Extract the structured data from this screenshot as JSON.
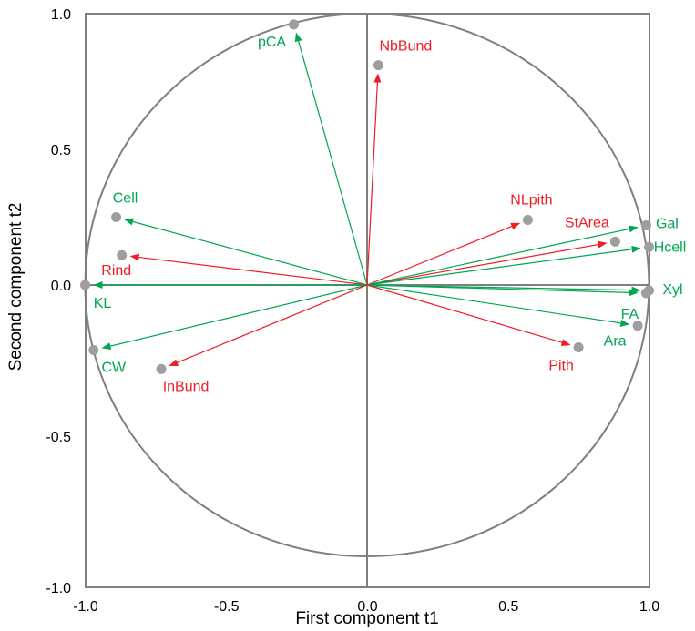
{
  "chart_data": {
    "type": "scatter",
    "subtype": "correlation-circle",
    "title": "",
    "xlabel": "First component t1",
    "ylabel": "Second component t2",
    "xlim": [
      -1.0,
      1.0
    ],
    "ylim": [
      -1.0,
      1.0
    ],
    "x_ticks": [
      "-1.0",
      "-0.5",
      "0.0",
      "0.5",
      "1.0"
    ],
    "y_ticks": [
      "1.0",
      "0.5",
      "0.0",
      "-0.5",
      "-1.0"
    ],
    "x_tick_values": [
      -1.0,
      -0.5,
      0.0,
      0.5,
      1.0
    ],
    "y_tick_values": [
      1.0,
      0.5,
      0.0,
      -0.5,
      -1.0
    ],
    "unit_circle": true,
    "grid": false,
    "legend": "none",
    "colors": {
      "green": "#00a651",
      "red": "#ee1c25",
      "point": "#9e9e9e",
      "frame": "#7f7f7f"
    },
    "variables": [
      {
        "label": "pCA",
        "x": -0.26,
        "y": 0.96,
        "color": "green"
      },
      {
        "label": "NbBund",
        "x": 0.04,
        "y": 0.81,
        "color": "red"
      },
      {
        "label": "Cell",
        "x": -0.89,
        "y": 0.25,
        "color": "green"
      },
      {
        "label": "Rind",
        "x": -0.87,
        "y": 0.11,
        "color": "red"
      },
      {
        "label": "KL",
        "x": -1.0,
        "y": 0.0,
        "color": "green"
      },
      {
        "label": "CW",
        "x": -0.97,
        "y": -0.24,
        "color": "green"
      },
      {
        "label": "InBund",
        "x": -0.73,
        "y": -0.31,
        "color": "red"
      },
      {
        "label": "NLpith",
        "x": 0.57,
        "y": 0.24,
        "color": "red"
      },
      {
        "label": "StArea",
        "x": 0.88,
        "y": 0.16,
        "color": "red"
      },
      {
        "label": "Gal",
        "x": 0.99,
        "y": 0.22,
        "color": "green"
      },
      {
        "label": "Hcell",
        "x": 1.0,
        "y": 0.14,
        "color": "green"
      },
      {
        "label": "Xyl",
        "x": 1.0,
        "y": -0.02,
        "color": "green"
      },
      {
        "label": "FA",
        "x": 0.99,
        "y": -0.03,
        "color": "green"
      },
      {
        "label": "Ara",
        "x": 0.96,
        "y": -0.15,
        "color": "green"
      },
      {
        "label": "Pith",
        "x": 0.75,
        "y": -0.23,
        "color": "red"
      }
    ]
  }
}
